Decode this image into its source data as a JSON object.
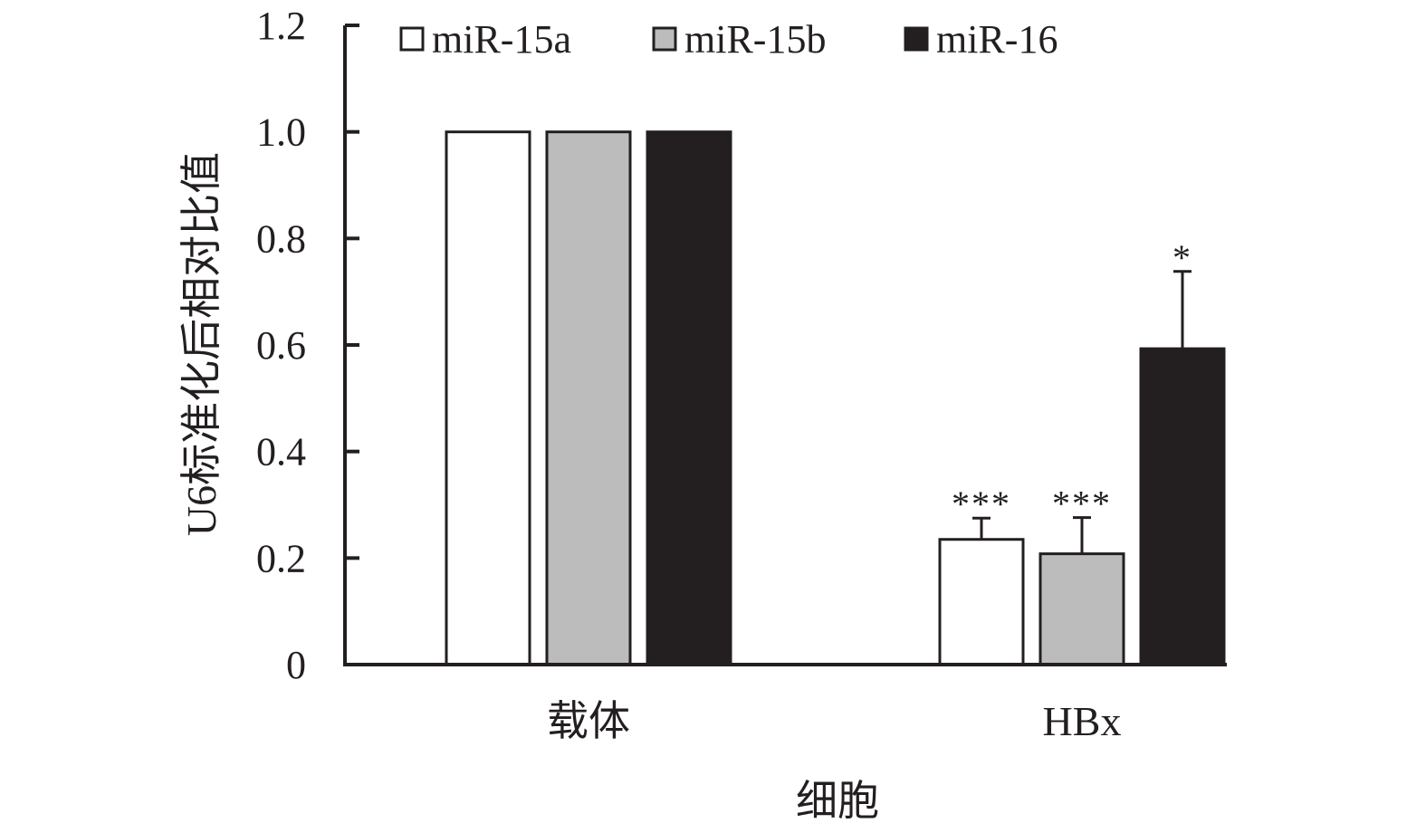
{
  "chart_data": {
    "type": "bar",
    "categories": [
      "载体",
      "HBx"
    ],
    "series": [
      {
        "name": "miR-15a",
        "values": [
          1.0,
          0.235
        ],
        "errors": [
          0,
          0.04
        ],
        "significance": [
          "",
          "***"
        ],
        "color": "#ffffff"
      },
      {
        "name": "miR-15b",
        "values": [
          1.0,
          0.208
        ],
        "errors": [
          0,
          0.068
        ],
        "significance": [
          "",
          "***"
        ],
        "color": "#bcbcbc"
      },
      {
        "name": "miR-16",
        "values": [
          1.0,
          0.593
        ],
        "errors": [
          0,
          0.145
        ],
        "significance": [
          "",
          "*"
        ],
        "color": "#231f20"
      }
    ],
    "xlabel": "细胞",
    "ylabel": "U6标准化后相对比值",
    "ylim": [
      0,
      1.2
    ],
    "yticks": [
      "0",
      "0.2",
      "0.4",
      "0.6",
      "0.8",
      "1.0",
      "1.2"
    ],
    "yticks_values": [
      0,
      0.2,
      0.4,
      0.6,
      0.8,
      1.0,
      1.2
    ],
    "grid": false,
    "legend_position": "top"
  }
}
